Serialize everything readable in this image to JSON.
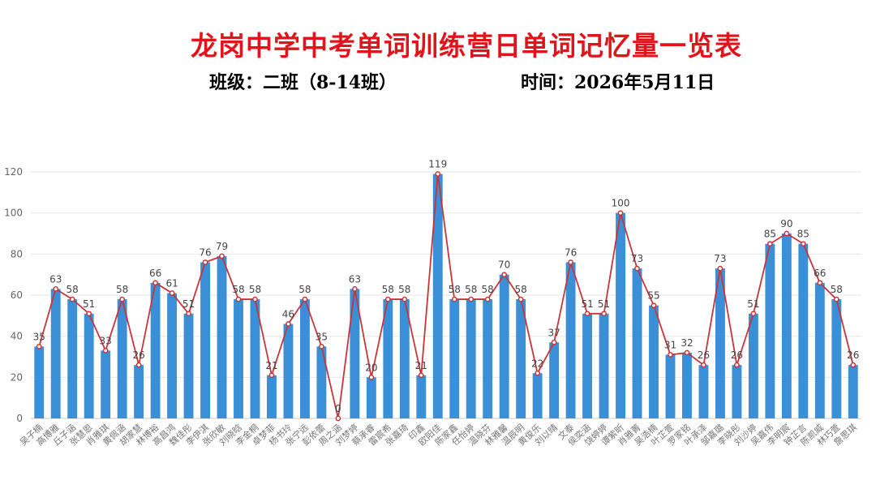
{
  "header": {
    "title": "龙岗中学中考单词训练营日单词记忆量一览表",
    "class_info": "班级：二班（8-14班）",
    "date_info": "时间：2026年5月11日"
  },
  "colors": {
    "title": "#e0141a",
    "bar": "#3a8fd6",
    "line": "#c8353a",
    "grid": "#e6e6e6"
  },
  "chart_data": {
    "type": "bar",
    "ylim": [
      0,
      120
    ],
    "yticks": [
      0,
      20,
      40,
      60,
      80,
      100,
      120
    ],
    "grid": true,
    "overlay_line": true,
    "categories": [
      "吴子楠",
      "高博雅",
      "丘子涵",
      "张慧恩",
      "肖雅琪",
      "黄佩涵",
      "胡家慧",
      "林博裕",
      "高昌鸿",
      "魏佳彤",
      "李伊淇",
      "张欣敏",
      "刘晓晗",
      "李金桐",
      "卓梦菲",
      "杨书玲",
      "张宁远",
      "彭依蕾",
      "周之涵",
      "刘梦婷",
      "蔡承睿",
      "雷宸希",
      "张嘉琦",
      "印鑫",
      "欧阳佳",
      "陈家鑫",
      "任怡婷",
      "温晓芬",
      "林雅馨",
      "温辰明",
      "黄俊乐",
      "刘以晴",
      "文泰",
      "侯奕涵",
      "饶婷婷",
      "谭紫昕",
      "肖雅菁",
      "吴浩楠",
      "叶芷萱",
      "罗家铭",
      "叶承泽",
      "邹嘉璐",
      "李晓彤",
      "刘沙婷",
      "吴嘉伟",
      "李明宸",
      "钟芷言",
      "陈凯威",
      "林巧萱",
      "詹思琪"
    ],
    "values": [
      35,
      63,
      58,
      51,
      33,
      58,
      26,
      66,
      61,
      51,
      76,
      79,
      58,
      58,
      21,
      46,
      58,
      35,
      0,
      63,
      20,
      58,
      58,
      21,
      119,
      58,
      58,
      58,
      70,
      58,
      22,
      37,
      76,
      51,
      51,
      100,
      73,
      55,
      31,
      32,
      26,
      73,
      26,
      51,
      85,
      90,
      85,
      66,
      58,
      26
    ]
  }
}
